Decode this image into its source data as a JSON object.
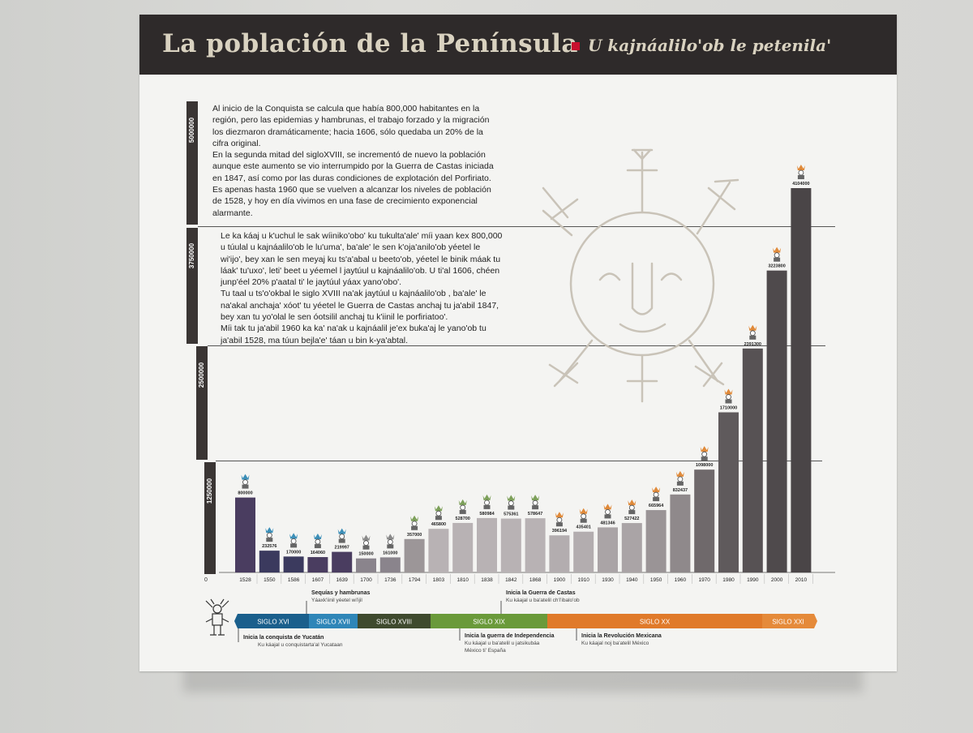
{
  "header": {
    "title": "La población de la Península",
    "subtitle": "U kajnáalilo'ob le petenila'"
  },
  "text": {
    "es": [
      "Al inicio de la Conquista se calcula que había 800,000 habitantes en la",
      "región, pero las epidemias y hambrunas, el trabajo forzado y la migración",
      "los diezmaron dramáticamente; hacia 1606, sólo quedaba un 20% de la",
      "cifra original.",
      "En la segunda mitad del sigloXVIII, se incrementó de nuevo la población",
      "aunque este aumento se vio interrumpido por la Guerra de Castas iniciada",
      "en 1847, así como por las duras condiciones de explotación del Porfiriato.",
      "Es apenas hasta 1960 que se vuelven a alcanzar los niveles de población",
      "de 1528, y hoy en día vivimos en una fase de crecimiento exponencial",
      "alarmante."
    ],
    "maya": [
      "Le ka káaj u k'uchul le sak wíiniko'obo' ku tukulta'ale' míi yaan kex 800,000",
      "u túulal u kajnáalilo'ob le lu'uma', ba'ale' le sen k'oja'anilo'ob yéetel le",
      "wi'ijo', bey xan le sen meyaj ku ts'a'abal u beeto'ob, yéetel le binik máak tu",
      "láak' tu'uxo', leti' beet u yéemel l jaytúul u kajnáalilo'ob. U ti'al 1606, chéen",
      "junp'éel 20% p'aatal ti' le jaytúul yáax yano'obo'.",
      "Tu taal u ts'o'okbal le siglo XVIII na'ak jaytúul u kajnáalilo'ob , ba'ale' le",
      "na'akal anchaja' xóot' tu yéetel le Guerra de Castas anchaj tu ja'abil 1847,",
      "bey xan tu yo'olal le sen óotsilil anchaj tu k'iinil le porfiriatoo'.",
      "Míi tak tu ja'abil 1960 ka ka' na'ak u kajnáalil je'ex buka'aj le yano'ob tu",
      "ja'abil 1528, ma túun bejla'e' táan u bin k-ya'abtal."
    ]
  },
  "chart_data": {
    "type": "bar",
    "title": "La población de la Península",
    "categories": [
      "1528",
      "1550",
      "1586",
      "1607",
      "1639",
      "1700",
      "1736",
      "1794",
      "1803",
      "1810",
      "1838",
      "1842",
      "1868",
      "1900",
      "1910",
      "1930",
      "1940",
      "1950",
      "1960",
      "1970",
      "1980",
      "1990",
      "2000",
      "2010"
    ],
    "values": [
      800000,
      232576,
      170000,
      164060,
      219997,
      150000,
      161000,
      357000,
      465800,
      528700,
      580984,
      575361,
      578647,
      396194,
      435401,
      481346,
      527422,
      665964,
      832437,
      1098000,
      1710000,
      2391300,
      3223800,
      4104000
    ],
    "value_labels": [
      "800000",
      "232576",
      "170000",
      "164060",
      "219997",
      "150000",
      "161000",
      "357000",
      "465800",
      "528700",
      "580984",
      "575361",
      "578647",
      "396194",
      "435401",
      "481346",
      "527422",
      "665964",
      "832437",
      "1098000",
      "1710000",
      "2391300",
      "3223800",
      "4104000"
    ],
    "ylim": [
      0,
      5000000
    ],
    "y_ticks": [
      {
        "value": 5000000,
        "label": "5000000"
      },
      {
        "value": 3750000,
        "label": "3750000"
      },
      {
        "value": 2500000,
        "label": "2500000"
      },
      {
        "value": 1250000,
        "label": "1250000"
      }
    ],
    "y_zero_label": "0",
    "bar_colors": [
      "#4a3d60",
      "#3b3a5e",
      "#3b3a5e",
      "#4a3d60",
      "#4a3d60",
      "#8a848c",
      "#8a848c",
      "#9c9698",
      "#b8b2b4",
      "#b8b2b4",
      "#b8b2b4",
      "#b8b2b4",
      "#b8b2b4",
      "#b3adaf",
      "#b3adaf",
      "#aaa4a6",
      "#aaa4a6",
      "#9a9496",
      "#8f898b",
      "#6f696b",
      "#5f5a5c",
      "#575254",
      "#4f4a4c",
      "#4a4547"
    ],
    "icon_colors": [
      "#3c8fb8",
      "#3c8fb8",
      "#3c8fb8",
      "#3c8fb8",
      "#3c8fb8",
      "#8a8a8a",
      "#8a8a8a",
      "#7da05a",
      "#7da05a",
      "#7da05a",
      "#7da05a",
      "#7da05a",
      "#7da05a",
      "#e08a3a",
      "#e08a3a",
      "#e08a3a",
      "#e08a3a",
      "#e08a3a",
      "#e08a3a",
      "#e08a3a",
      "#e08a3a",
      "#e08a3a",
      "#e08a3a",
      "#e08a3a"
    ]
  },
  "timeline": {
    "centuries": [
      {
        "label": "SIGLO XVI",
        "color": "#1a5f8c"
      },
      {
        "label": "SIGLO XVII",
        "color": "#2f86b8"
      },
      {
        "label": "SIGLO XVIII",
        "color": "#3f4a2e"
      },
      {
        "label": "SIGLO XIX",
        "color": "#6a9a3a"
      },
      {
        "label": "SIGLO XX",
        "color": "#e07a2a"
      },
      {
        "label": "SIGLO XXI",
        "color": "#e58a3a"
      }
    ],
    "events": [
      {
        "title": "Inicia la conquista de Yucatán",
        "subtitle": "Ku káajal u conquistarta'al Yucataan",
        "subtitle2": ""
      },
      {
        "title": "Sequías y hambrunas",
        "subtitle": "Yáaxk'iinil yéetel wi'ijil",
        "subtitle2": ""
      },
      {
        "title": "Inicia la Guerra de Castas",
        "subtitle": "Ku káajal u ba'atelil ch'i'ibalo'ob",
        "subtitle2": ""
      },
      {
        "title": "Inicia la guerra de Independencia",
        "subtitle": "Ku káajal u ba'atelil u jatsikubáa",
        "subtitle2": "México ti' España"
      },
      {
        "title": "Inicia la Revolución Mexicana",
        "subtitle": "Ku káajal noj ba'atelil México",
        "subtitle2": ""
      }
    ]
  },
  "colors": {
    "banner": "#2e2a2a",
    "accent": "#c8102e",
    "panel": "#f4f4f2"
  },
  "icons": [
    "crowned-figure-icon",
    "sun-face-icon",
    "maya-figure-icon"
  ]
}
